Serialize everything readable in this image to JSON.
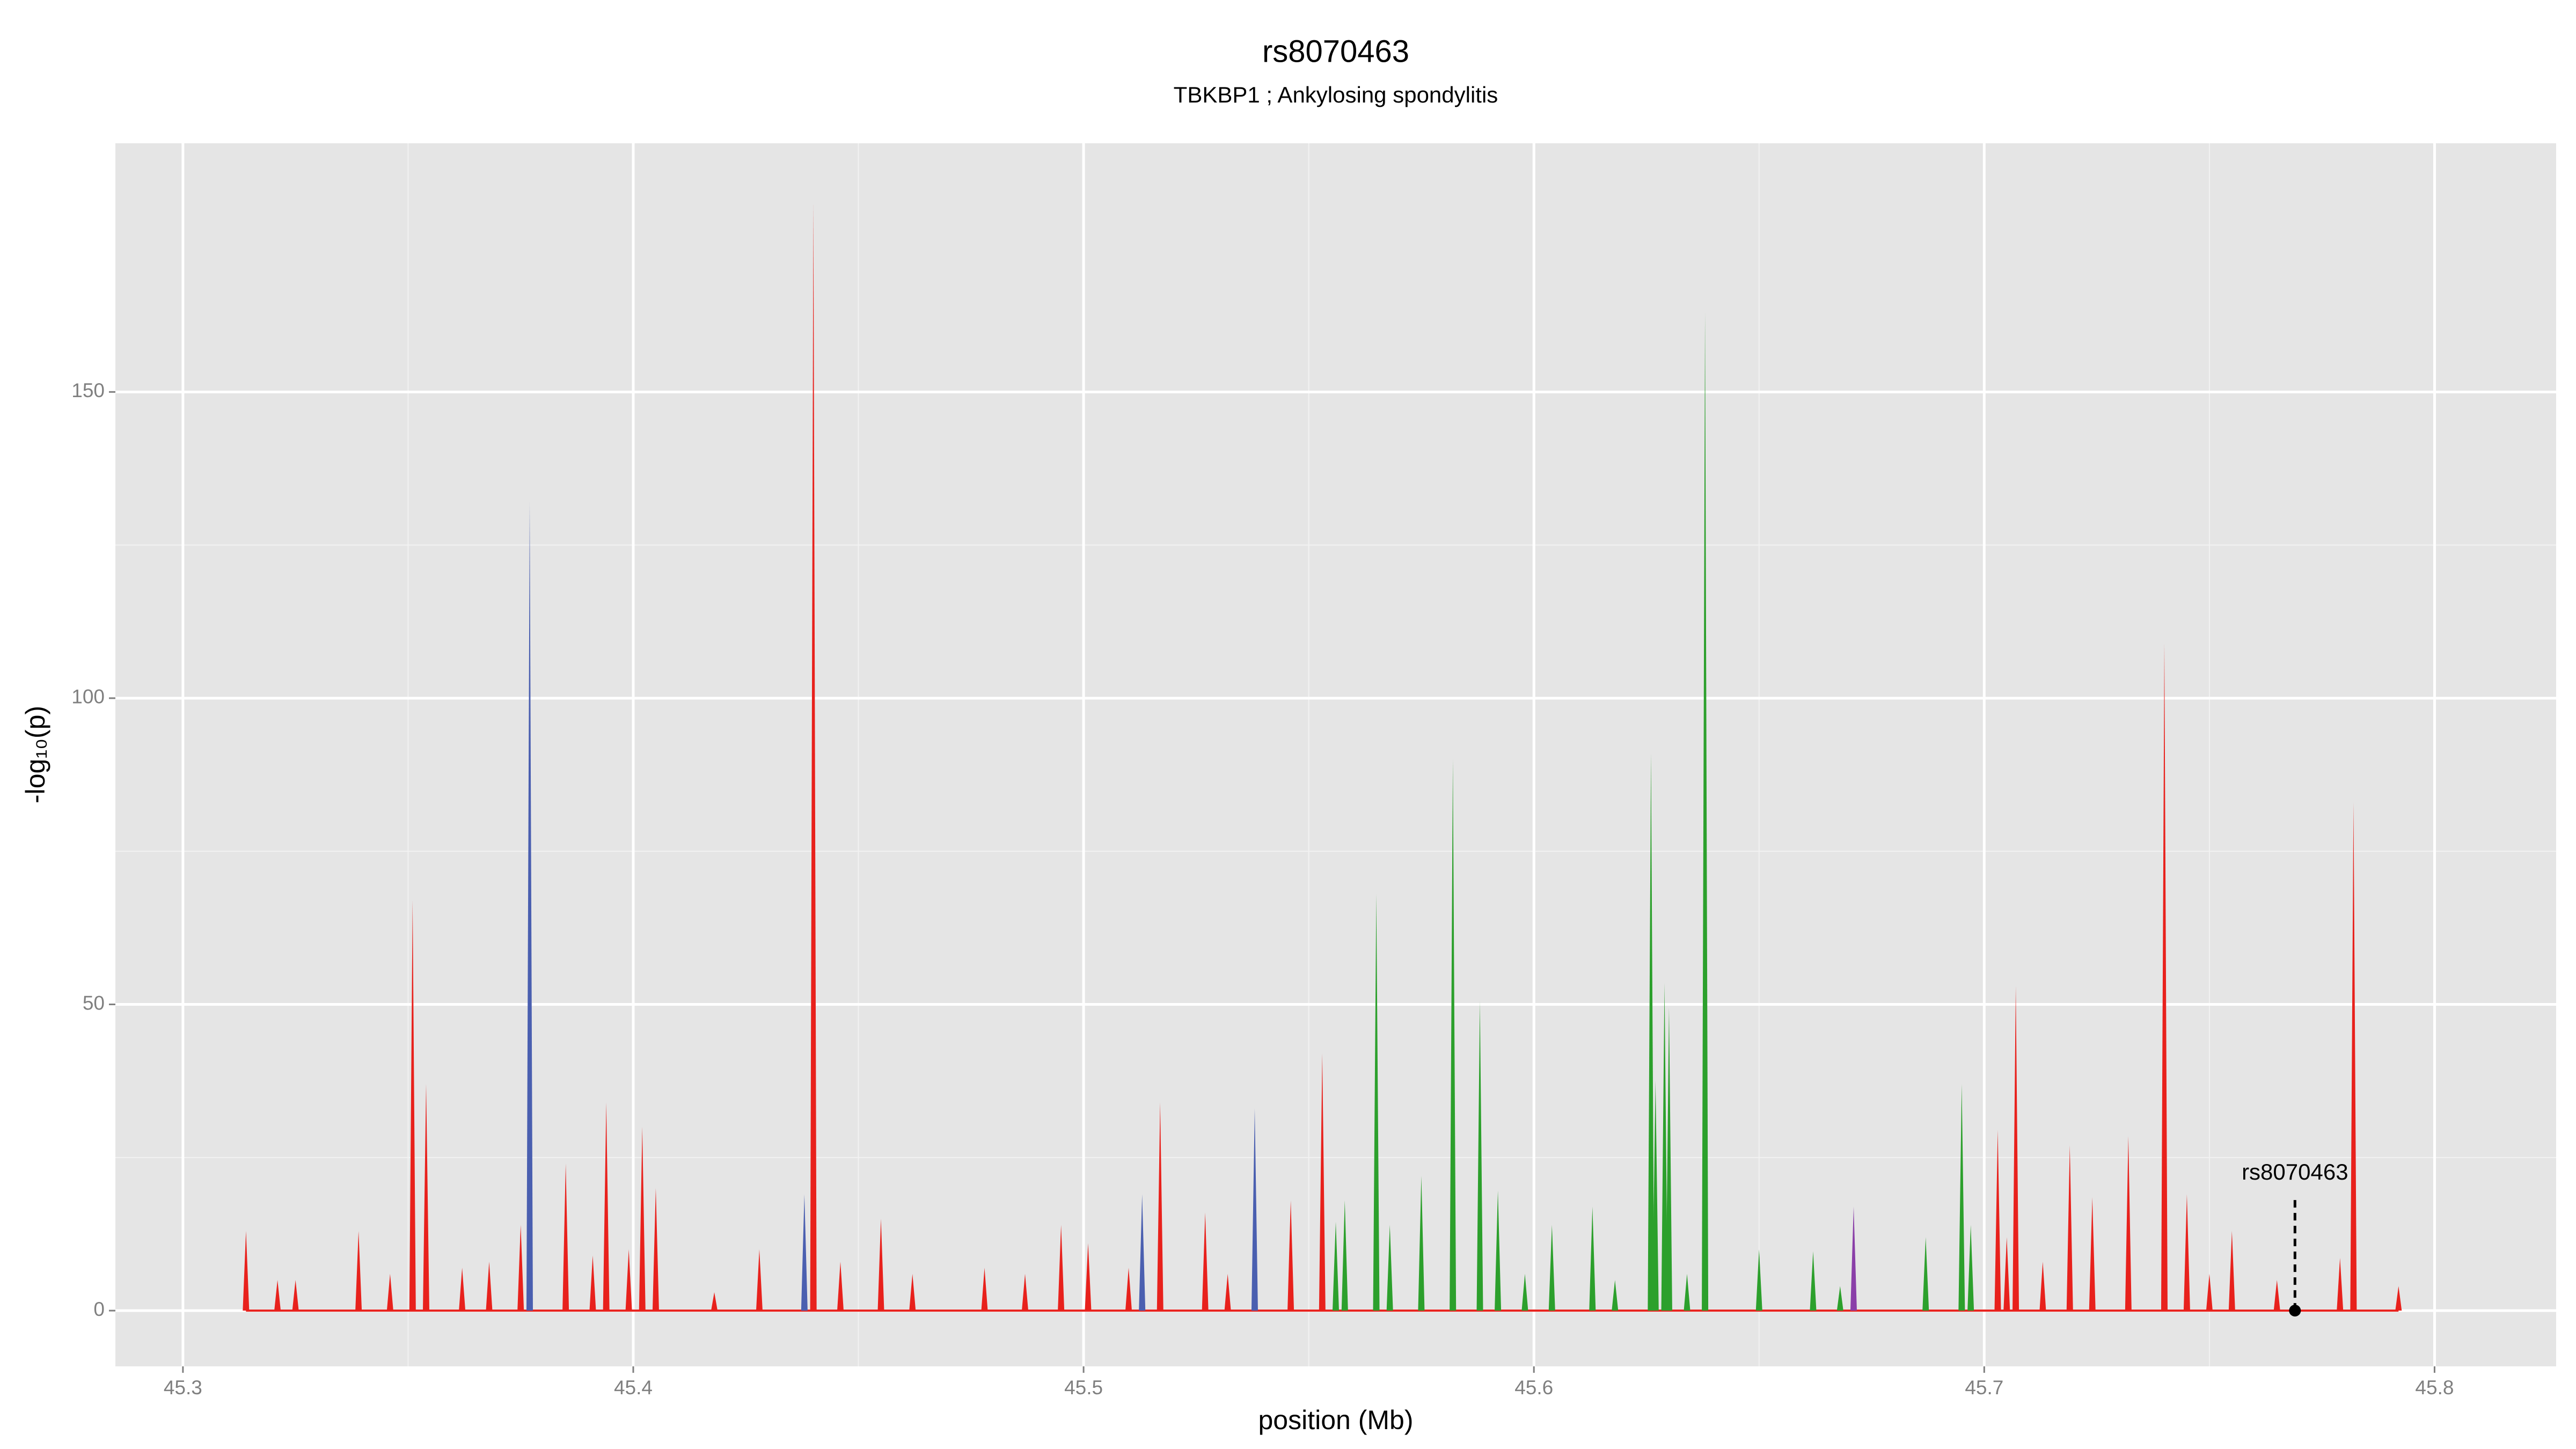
{
  "chart_data": {
    "type": "spike",
    "title": "rs8070463",
    "subtitle": "TBKBP1 ; Ankylosing spondylitis",
    "xlabel": "position (Mb)",
    "ylabel": "-log₁₀(p)",
    "xlim": [
      45.285,
      45.827
    ],
    "ylim": [
      -9.1,
      190.6
    ],
    "xticks": [
      45.3,
      45.4,
      45.5,
      45.6,
      45.7,
      45.8
    ],
    "yticks": [
      0,
      50,
      100,
      150
    ],
    "grid": true,
    "series": [
      {
        "color": "#e8211c",
        "x": [
          45.314,
          45.321,
          45.325,
          45.339,
          45.346,
          45.351,
          45.354,
          45.362,
          45.368,
          45.375,
          45.385,
          45.391,
          45.394,
          45.399,
          45.402,
          45.405,
          45.418,
          45.428,
          45.44,
          45.446,
          45.455,
          45.462,
          45.478,
          45.487,
          45.495,
          45.501,
          45.51,
          45.517,
          45.527,
          45.532,
          45.546,
          45.553,
          45.705,
          45.703,
          45.707,
          45.713,
          45.719,
          45.724,
          45.732,
          45.74,
          45.745,
          45.75,
          45.755,
          45.765,
          45.779,
          45.782,
          45.792
        ],
        "values": [
          13,
          5,
          5,
          13,
          6,
          67,
          37,
          7,
          8,
          14,
          24,
          9,
          34,
          10,
          30,
          20,
          3,
          10,
          181,
          8,
          15,
          6,
          7,
          6,
          14,
          11,
          7,
          34,
          16,
          6,
          18,
          42,
          12,
          29.5,
          53,
          8,
          27,
          18.5,
          28.5,
          109,
          19,
          6,
          13,
          5,
          8.6,
          83,
          4
        ]
      },
      {
        "color": "#2ca02c",
        "x": [
          45.556,
          45.558,
          45.565,
          45.568,
          45.575,
          45.582,
          45.588,
          45.592,
          45.598,
          45.604,
          45.613,
          45.618,
          45.626,
          45.627,
          45.629,
          45.63,
          45.634,
          45.638,
          45.65,
          45.662,
          45.668,
          45.687,
          45.695,
          45.697
        ],
        "values": [
          14.5,
          18,
          68,
          14,
          22,
          90,
          50.5,
          19.6,
          6,
          14,
          17,
          5,
          91,
          37.6,
          53.5,
          49.5,
          6,
          163,
          10,
          9.7,
          4,
          12,
          37,
          14
        ]
      },
      {
        "color": "#4a5fb0",
        "x": [
          45.377,
          45.438,
          45.513,
          45.538
        ],
        "values": [
          132,
          19,
          19,
          33
        ]
      },
      {
        "color": "#8a3fa8",
        "x": [
          45.671
        ],
        "values": [
          17
        ]
      }
    ],
    "annotation": {
      "label": "rs8070463",
      "x": 45.769,
      "y": 0
    }
  }
}
